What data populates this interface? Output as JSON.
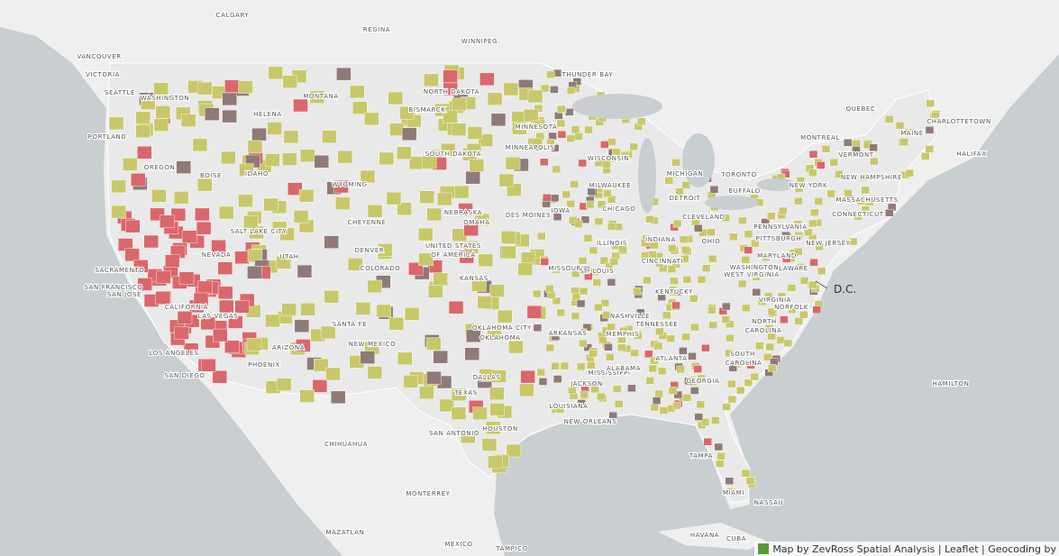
{
  "map": {
    "labels": [
      "CALGARY",
      "REGINA",
      "WINNIPEG",
      "VANCOUVER",
      "VICTORIA",
      "SEATTLE",
      "WASHINGTON",
      "PORTLAND",
      "OREGON",
      "BOISE",
      "IDAHO",
      "HELENA",
      "MONTANA",
      "NORTH DAKOTA",
      "BISMARCK",
      "THUNDER BAY",
      "MINNESOTA",
      "SOUTH DAKOTA",
      "MINNEAPOLIS",
      "WYOMING",
      "NEBRASKA",
      "IOWA",
      "DES MOINES",
      "OMAHA",
      "CHEYENNE",
      "SALT LAKE CITY",
      "UTAH",
      "NEVADA",
      "DENVER",
      "COLORADO",
      "UNITED STATES",
      "OF AMERICA",
      "KANSAS",
      "MISSOURI",
      "ST. LOUIS",
      "ILLINOIS",
      "CHICAGO",
      "MILWAUKEE",
      "WISCONSIN",
      "MICHIGAN",
      "DETROIT",
      "TORONTO",
      "BUFFALO",
      "CLEVELAND",
      "INDIANA",
      "OHIO",
      "PENNSYLVANIA",
      "PITTSBURGH",
      "NEW YORK",
      "MONTREAL",
      "QUEBEC",
      "CHARLOTTETOWN",
      "HALIFAX",
      "MAINE",
      "VERMONT",
      "NEW HAMPSHIRE",
      "MASSACHUSETTS",
      "CONNECTICUT",
      "NEW JERSEY",
      "MARYLAND",
      "DELAWARE",
      "WASHINGTON",
      "WEST VIRGINIA",
      "VIRGINIA",
      "NORFOLK",
      "CINCINNATI",
      "KENTUCKY",
      "NASHVILLE",
      "TENNESSEE",
      "MEMPHIS",
      "ARKANSAS",
      "OKLAHOMA CITY",
      "OKLAHOMA",
      "DALLAS",
      "TEXAS",
      "HOUSTON",
      "SAN ANTONIO",
      "LOUISIANA",
      "NEW ORLEANS",
      "JACKSON",
      "MISSISSIPPI",
      "ALABAMA",
      "ATLANTA",
      "GEORGIA",
      "NORTH",
      "CAROLINA",
      "SOUTH",
      "CAROLINA",
      "TAMPA",
      "MIAMI",
      "NASSAU",
      "HAMILTON",
      "SACRAMENTO",
      "SAN FRANCISCO",
      "SAN JOSE",
      "CALIFORNIA",
      "LAS VEGAS",
      "LOS ANGELES",
      "SAN DIEGO",
      "PHOENIX",
      "ARIZONA",
      "SANTA FE",
      "NEW MEXICO",
      "CHIHUAHUA",
      "MONTERREY",
      "MAZATLAN",
      "MEXICO",
      "TAMPICO",
      "HAVANA",
      "CUBA"
    ],
    "dc_label": "D.C.",
    "attribution": "Map by ZevRoss Spatial Analysis | Leaflet | Geocoding by"
  }
}
